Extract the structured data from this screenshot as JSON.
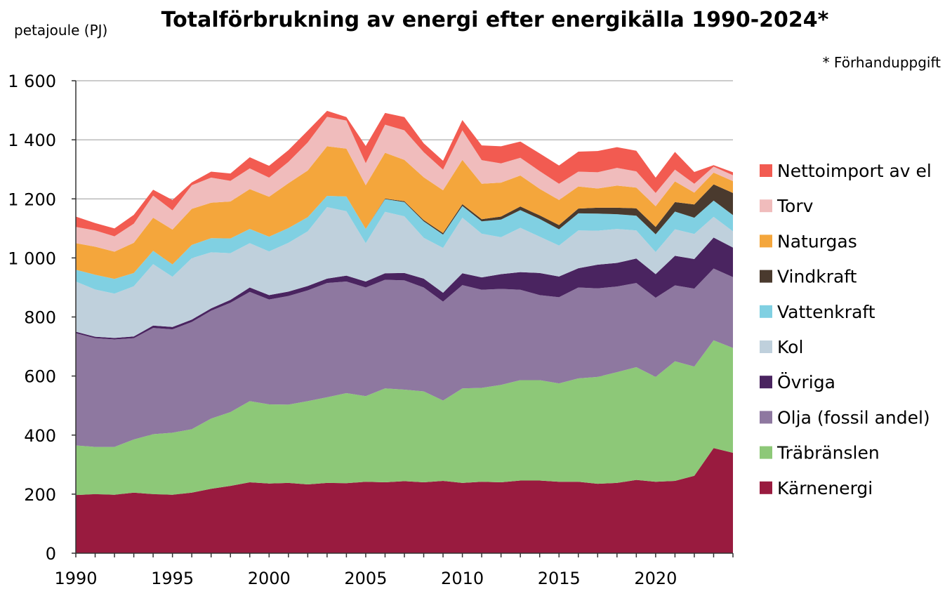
{
  "chart_data": {
    "type": "area",
    "title": "Totalförbrukning av energi efter energikälla 1990-2024*",
    "ylabel": "petajoule (PJ)",
    "note": "* Förhanduppgift",
    "xlabel": "",
    "ylim": [
      0,
      1600
    ],
    "y_ticks": [
      0,
      200,
      400,
      600,
      800,
      1000,
      1200,
      1400,
      1600
    ],
    "y_tick_labels": [
      "0",
      "200",
      "400",
      "600",
      "800",
      "1 000",
      "1 200",
      "1 400",
      "1 600"
    ],
    "x_ticks": [
      1990,
      1995,
      2000,
      2005,
      2010,
      2015,
      2020
    ],
    "x_tick_labels": [
      "1990",
      "1995",
      "2000",
      "2005",
      "2010",
      "2015",
      "2020"
    ],
    "gridlines": "horizontal",
    "legend_position": "right",
    "stacked": true,
    "x": [
      1990,
      1991,
      1992,
      1993,
      1994,
      1995,
      1996,
      1997,
      1998,
      1999,
      2000,
      2001,
      2002,
      2003,
      2004,
      2005,
      2006,
      2007,
      2008,
      2009,
      2010,
      2011,
      2012,
      2013,
      2014,
      2015,
      2016,
      2017,
      2018,
      2019,
      2020,
      2021,
      2022,
      2023,
      2024
    ],
    "series": [
      {
        "name": "Kärnenergi",
        "color": "#991b3f",
        "values": [
          197,
          200,
          198,
          205,
          200,
          198,
          205,
          218,
          228,
          240,
          236,
          238,
          233,
          238,
          237,
          242,
          240,
          244,
          240,
          245,
          238,
          242,
          240,
          246,
          246,
          242,
          242,
          235,
          238,
          248,
          242,
          245,
          262,
          356,
          340
        ]
      },
      {
        "name": "Träbränslen",
        "color": "#8dc878",
        "values": [
          168,
          160,
          162,
          180,
          203,
          210,
          215,
          238,
          250,
          275,
          268,
          265,
          282,
          290,
          305,
          290,
          318,
          310,
          308,
          272,
          320,
          318,
          330,
          340,
          340,
          333,
          350,
          362,
          375,
          382,
          355,
          405,
          370,
          365,
          355
        ]
      },
      {
        "name": "Olja (fossil andel)",
        "color": "#8e78a0",
        "values": [
          380,
          368,
          364,
          343,
          360,
          350,
          363,
          365,
          370,
          370,
          355,
          368,
          375,
          387,
          378,
          368,
          368,
          370,
          352,
          335,
          350,
          332,
          325,
          306,
          288,
          292,
          308,
          300,
          290,
          285,
          268,
          257,
          264,
          243,
          240
        ]
      },
      {
        "name": "Övriga",
        "color": "#4a2460",
        "values": [
          5,
          5,
          5,
          6,
          8,
          8,
          8,
          8,
          10,
          15,
          15,
          15,
          15,
          15,
          20,
          20,
          22,
          25,
          30,
          30,
          40,
          42,
          50,
          60,
          75,
          70,
          65,
          80,
          80,
          83,
          80,
          100,
          100,
          105,
          100
        ]
      },
      {
        "name": "Kol",
        "color": "#bfd0dc",
        "values": [
          170,
          160,
          150,
          170,
          208,
          170,
          208,
          190,
          158,
          150,
          148,
          165,
          185,
          242,
          218,
          130,
          208,
          192,
          138,
          152,
          188,
          148,
          125,
          150,
          123,
          105,
          128,
          115,
          115,
          95,
          75,
          90,
          85,
          70,
          55
        ]
      },
      {
        "name": "Vattenkraft",
        "color": "#80d0e2",
        "values": [
          40,
          50,
          50,
          45,
          45,
          42,
          45,
          48,
          50,
          48,
          50,
          50,
          48,
          38,
          50,
          48,
          43,
          48,
          56,
          45,
          40,
          42,
          60,
          60,
          60,
          55,
          58,
          58,
          50,
          50,
          60,
          60,
          55,
          55,
          55
        ]
      },
      {
        "name": "Vindkraft",
        "color": "#4a3a2e",
        "values": [
          0,
          0,
          0,
          0,
          0,
          0,
          0,
          0,
          0,
          0,
          0,
          0,
          0,
          0,
          0,
          0,
          2,
          3,
          4,
          5,
          6,
          7,
          10,
          12,
          12,
          14,
          16,
          20,
          22,
          25,
          25,
          32,
          45,
          55,
          75
        ]
      },
      {
        "name": "Naturgas",
        "color": "#f4a63c",
        "values": [
          90,
          95,
          92,
          102,
          112,
          118,
          122,
          120,
          125,
          135,
          135,
          152,
          158,
          168,
          162,
          148,
          155,
          140,
          145,
          145,
          150,
          120,
          115,
          105,
          90,
          85,
          75,
          65,
          75,
          70,
          70,
          70,
          40,
          40,
          40
        ]
      },
      {
        "name": "Torv",
        "color": "#f0bcbc",
        "values": [
          55,
          55,
          52,
          65,
          75,
          65,
          80,
          85,
          70,
          70,
          65,
          72,
          95,
          100,
          95,
          75,
          95,
          100,
          85,
          70,
          100,
          80,
          65,
          60,
          60,
          55,
          50,
          55,
          60,
          55,
          45,
          40,
          30,
          20,
          20
        ]
      },
      {
        "name": "Nettoimport av el",
        "color": "#f25b51",
        "values": [
          35,
          25,
          27,
          30,
          20,
          35,
          10,
          20,
          25,
          38,
          40,
          40,
          40,
          20,
          12,
          58,
          40,
          45,
          30,
          30,
          35,
          50,
          58,
          55,
          60,
          62,
          68,
          72,
          70,
          70,
          52,
          60,
          40,
          5,
          10
        ]
      }
    ]
  }
}
